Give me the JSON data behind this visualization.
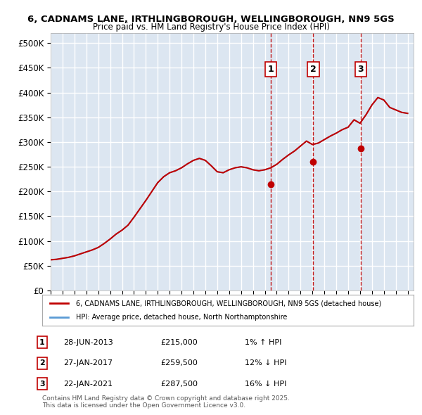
{
  "title_line1": "6, CADNAMS LANE, IRTHLINGBOROUGH, WELLINGBOROUGH, NN9 5GS",
  "title_line2": "Price paid vs. HM Land Registry's House Price Index (HPI)",
  "ylabel": "",
  "xlabel": "",
  "ylim": [
    0,
    520000
  ],
  "yticks": [
    0,
    50000,
    100000,
    150000,
    200000,
    250000,
    300000,
    350000,
    400000,
    450000,
    500000
  ],
  "ytick_labels": [
    "£0",
    "£50K",
    "£100K",
    "£150K",
    "£200K",
    "£250K",
    "£300K",
    "£350K",
    "£400K",
    "£450K",
    "£500K"
  ],
  "hpi_color": "#5b9bd5",
  "price_color": "#c00000",
  "sale_color": "#c00000",
  "dashed_line_color": "#c00000",
  "bg_color": "#dce6f1",
  "grid_color": "#ffffff",
  "sale_dates": [
    "2013-06-28",
    "2017-01-27",
    "2021-01-22"
  ],
  "sale_prices": [
    215000,
    259500,
    287500
  ],
  "sale_labels": [
    "1",
    "2",
    "3"
  ],
  "legend_price_label": "6, CADNAMS LANE, IRTHLINGBOROUGH, WELLINGBOROUGH, NN9 5GS (detached house)",
  "legend_hpi_label": "HPI: Average price, detached house, North Northamptonshire",
  "table_rows": [
    {
      "num": "1",
      "date": "28-JUN-2013",
      "price": "£215,000",
      "hpi": "1% ↑ HPI"
    },
    {
      "num": "2",
      "date": "27-JAN-2017",
      "price": "£259,500",
      "hpi": "12% ↓ HPI"
    },
    {
      "num": "3",
      "date": "22-JAN-2021",
      "price": "£287,500",
      "hpi": "16% ↓ HPI"
    }
  ],
  "footnote": "Contains HM Land Registry data © Crown copyright and database right 2025.\nThis data is licensed under the Open Government Licence v3.0.",
  "xlim_start": 1995.0,
  "xlim_end": 2025.5
}
